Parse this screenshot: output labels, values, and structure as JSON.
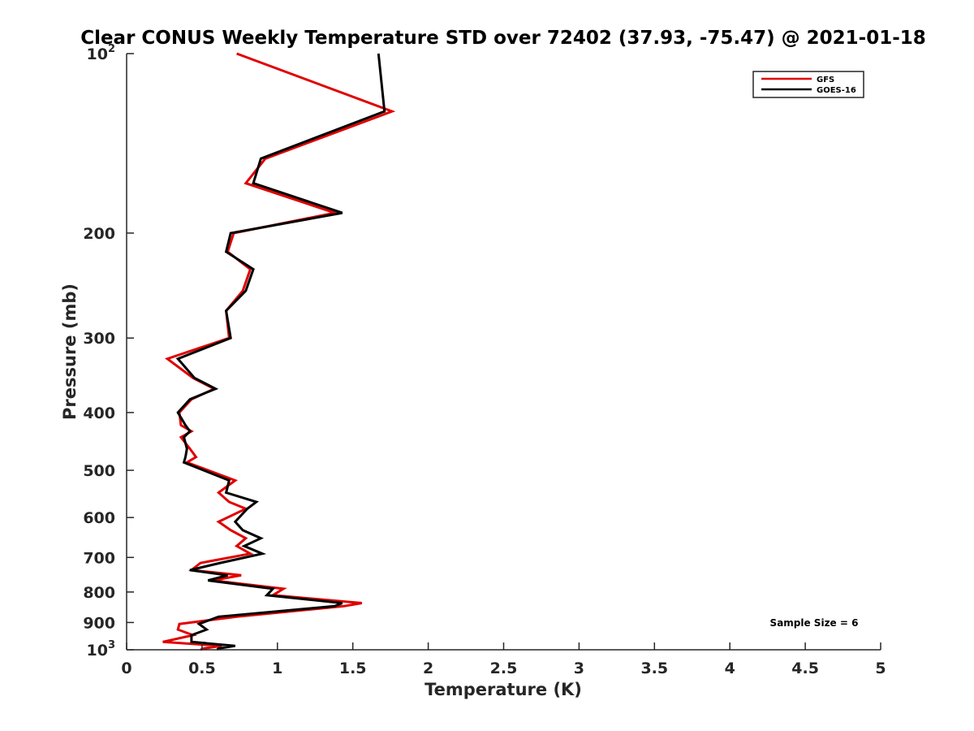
{
  "chart_data": {
    "type": "line",
    "title": "Clear CONUS Weekly Temperature STD over 72402 (37.93, -75.47) @ 2021-01-18",
    "xlabel": "Temperature (K)",
    "ylabel": "Pressure (mb)",
    "xlim": [
      0,
      5
    ],
    "ylim": [
      100,
      1000
    ],
    "yscale": "log",
    "yreversed": true,
    "grid": false,
    "legend_position": "top-right",
    "x_ticks": [
      {
        "value": 0,
        "label": "0"
      },
      {
        "value": 0.5,
        "label": "0.5"
      },
      {
        "value": 1,
        "label": "1"
      },
      {
        "value": 1.5,
        "label": "1.5"
      },
      {
        "value": 2,
        "label": "2"
      },
      {
        "value": 2.5,
        "label": "2.5"
      },
      {
        "value": 3,
        "label": "3"
      },
      {
        "value": 3.5,
        "label": "3.5"
      },
      {
        "value": 4,
        "label": "4"
      },
      {
        "value": 4.5,
        "label": "4.5"
      },
      {
        "value": 5,
        "label": "5"
      }
    ],
    "y_ticks": [
      {
        "value": 100,
        "base": "10",
        "exp": "2"
      },
      {
        "value": 200,
        "base": "200",
        "exp": ""
      },
      {
        "value": 300,
        "base": "300",
        "exp": ""
      },
      {
        "value": 400,
        "base": "400",
        "exp": ""
      },
      {
        "value": 500,
        "base": "500",
        "exp": ""
      },
      {
        "value": 600,
        "base": "600",
        "exp": ""
      },
      {
        "value": 700,
        "base": "700",
        "exp": ""
      },
      {
        "value": 800,
        "base": "800",
        "exp": ""
      },
      {
        "value": 900,
        "base": "900",
        "exp": ""
      },
      {
        "value": 1000,
        "base": "10",
        "exp": "3"
      }
    ],
    "annotation": "Sample Size = 6",
    "series": [
      {
        "name": "GFS",
        "color": "#e00000",
        "points": [
          [
            0.73,
            100
          ],
          [
            1.76,
            125
          ],
          [
            0.92,
            150
          ],
          [
            0.79,
            165
          ],
          [
            1.38,
            185
          ],
          [
            0.71,
            200
          ],
          [
            0.67,
            215
          ],
          [
            0.82,
            230
          ],
          [
            0.77,
            250
          ],
          [
            0.66,
            270
          ],
          [
            0.68,
            300
          ],
          [
            0.27,
            325
          ],
          [
            0.44,
            350
          ],
          [
            0.58,
            365
          ],
          [
            0.43,
            380
          ],
          [
            0.35,
            400
          ],
          [
            0.36,
            420
          ],
          [
            0.43,
            430
          ],
          [
            0.36,
            440
          ],
          [
            0.42,
            460
          ],
          [
            0.46,
            475
          ],
          [
            0.4,
            485
          ],
          [
            0.72,
            520
          ],
          [
            0.61,
            545
          ],
          [
            0.68,
            565
          ],
          [
            0.79,
            580
          ],
          [
            0.61,
            610
          ],
          [
            0.69,
            630
          ],
          [
            0.79,
            650
          ],
          [
            0.73,
            670
          ],
          [
            0.82,
            690
          ],
          [
            0.49,
            715
          ],
          [
            0.43,
            735
          ],
          [
            0.76,
            750
          ],
          [
            0.57,
            765
          ],
          [
            1.04,
            790
          ],
          [
            0.97,
            810
          ],
          [
            1.56,
            835
          ],
          [
            1.44,
            845
          ],
          [
            0.73,
            880
          ],
          [
            0.35,
            905
          ],
          [
            0.34,
            925
          ],
          [
            0.44,
            945
          ],
          [
            0.24,
            970
          ],
          [
            0.63,
            985
          ],
          [
            0.51,
            995
          ],
          [
            0.49,
            1000
          ]
        ]
      },
      {
        "name": "GOES-16",
        "color": "#000000",
        "points": [
          [
            1.67,
            100
          ],
          [
            1.71,
            125
          ],
          [
            0.89,
            150
          ],
          [
            0.84,
            165
          ],
          [
            1.43,
            185
          ],
          [
            0.69,
            200
          ],
          [
            0.66,
            215
          ],
          [
            0.84,
            230
          ],
          [
            0.79,
            250
          ],
          [
            0.66,
            270
          ],
          [
            0.69,
            300
          ],
          [
            0.34,
            325
          ],
          [
            0.45,
            350
          ],
          [
            0.59,
            365
          ],
          [
            0.42,
            380
          ],
          [
            0.34,
            400
          ],
          [
            0.39,
            420
          ],
          [
            0.42,
            430
          ],
          [
            0.38,
            440
          ],
          [
            0.4,
            460
          ],
          [
            0.39,
            475
          ],
          [
            0.38,
            485
          ],
          [
            0.68,
            520
          ],
          [
            0.66,
            545
          ],
          [
            0.86,
            565
          ],
          [
            0.8,
            580
          ],
          [
            0.72,
            610
          ],
          [
            0.77,
            630
          ],
          [
            0.89,
            650
          ],
          [
            0.78,
            670
          ],
          [
            0.9,
            690
          ],
          [
            0.62,
            715
          ],
          [
            0.42,
            735
          ],
          [
            0.67,
            750
          ],
          [
            0.54,
            765
          ],
          [
            0.97,
            790
          ],
          [
            0.93,
            810
          ],
          [
            1.43,
            835
          ],
          [
            1.38,
            845
          ],
          [
            0.61,
            880
          ],
          [
            0.48,
            905
          ],
          [
            0.53,
            925
          ],
          [
            0.43,
            945
          ],
          [
            0.43,
            970
          ],
          [
            0.72,
            985
          ],
          [
            0.61,
            995
          ],
          [
            0.6,
            1000
          ]
        ]
      }
    ]
  }
}
